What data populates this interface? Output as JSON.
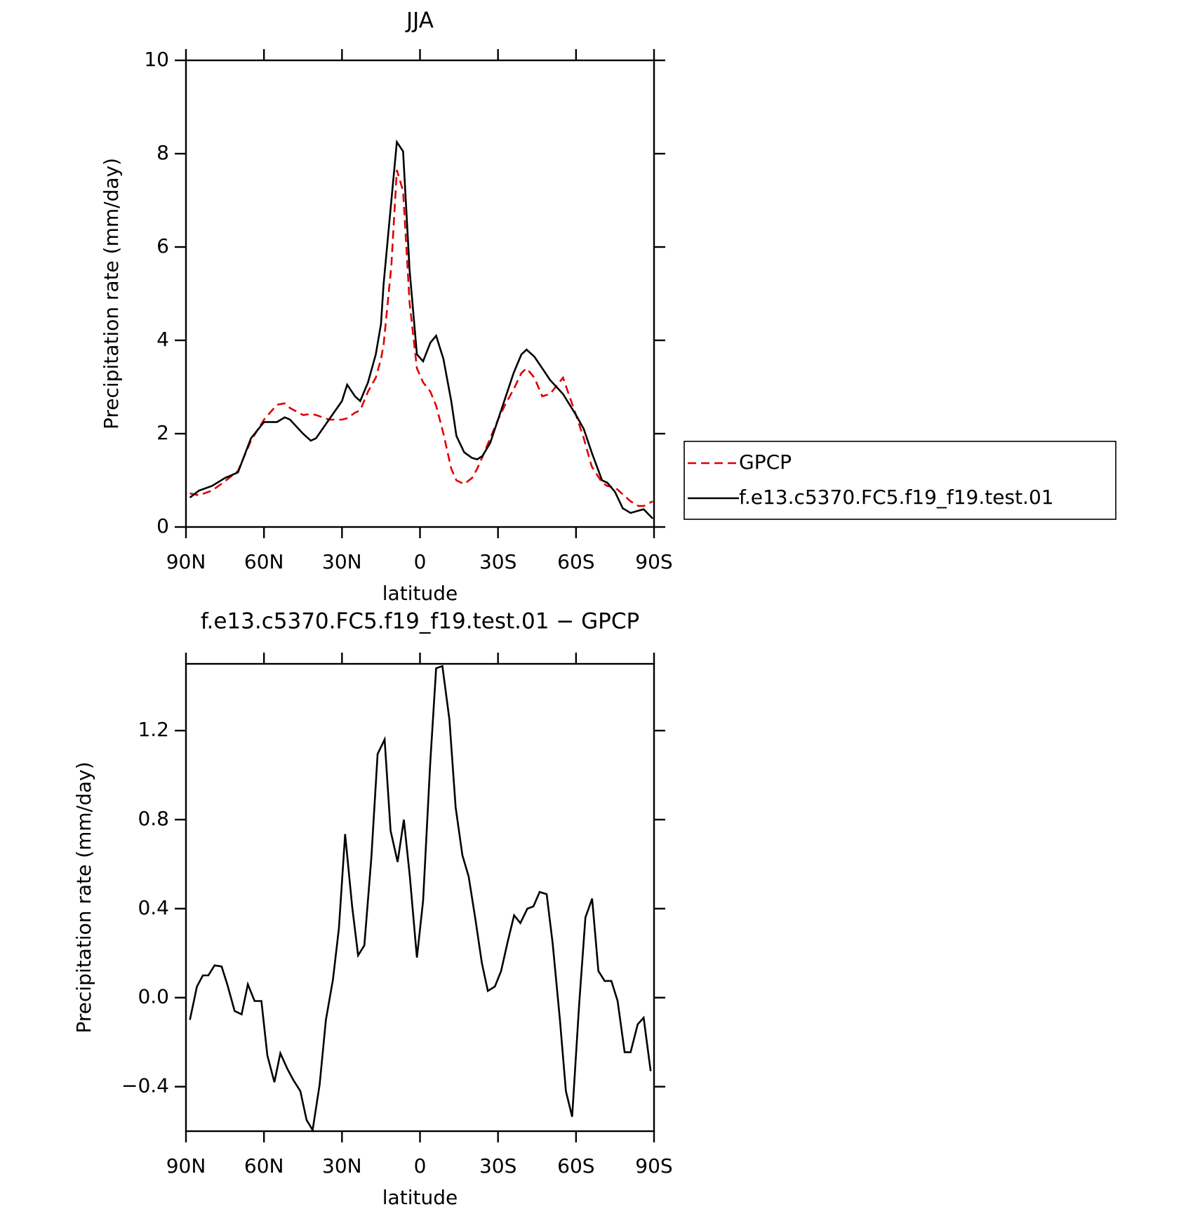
{
  "chart_data": [
    {
      "type": "line",
      "title": "JJA",
      "x_label": "latitude",
      "y_label": "Precipitation rate (mm/day)",
      "x": [
        88.5,
        85,
        80,
        75,
        70,
        65,
        60,
        55,
        52,
        50,
        45,
        42,
        40,
        35,
        30,
        28,
        25,
        23,
        20,
        17,
        15,
        14,
        11,
        8.9,
        6.5,
        4,
        1.2,
        -1.2,
        -4,
        -6.2,
        -9,
        -12,
        -14,
        -17,
        -20,
        -22,
        -24,
        -27,
        -30,
        -33,
        -36,
        -39,
        -41,
        -44,
        -47,
        -50,
        -55,
        -60,
        -63,
        -66,
        -70,
        -72,
        -75,
        -78,
        -81,
        -84,
        -86,
        -89.5
      ],
      "series": [
        {
          "name": "GPCP",
          "color": "#e00000",
          "dashed": true,
          "values": [
            0.72,
            0.68,
            0.78,
            0.98,
            1.2,
            1.85,
            2.3,
            2.62,
            2.65,
            2.55,
            2.4,
            2.42,
            2.4,
            2.3,
            2.3,
            2.33,
            2.45,
            2.5,
            2.9,
            3.2,
            3.6,
            3.9,
            5.6,
            7.65,
            7.2,
            4.8,
            3.4,
            3.1,
            2.9,
            2.6,
            2.0,
            1.25,
            1.0,
            0.92,
            1.05,
            1.25,
            1.5,
            1.9,
            2.3,
            2.65,
            2.95,
            3.3,
            3.4,
            3.2,
            2.8,
            2.85,
            3.2,
            2.4,
            1.9,
            1.3,
            0.95,
            0.88,
            0.85,
            0.7,
            0.55,
            0.45,
            0.45,
            0.55
          ]
        },
        {
          "name": "f.e13.c5370.FC5.f19_f19.test.01",
          "color": "#000000",
          "dashed": false,
          "values": [
            0.63,
            0.78,
            0.88,
            1.05,
            1.17,
            1.9,
            2.25,
            2.25,
            2.35,
            2.3,
            2.0,
            1.85,
            1.9,
            2.3,
            2.7,
            3.05,
            2.8,
            2.7,
            3.1,
            3.7,
            4.35,
            5.2,
            7.0,
            8.25,
            8.05,
            5.5,
            3.7,
            3.55,
            3.95,
            4.1,
            3.6,
            2.7,
            1.95,
            1.6,
            1.48,
            1.45,
            1.52,
            1.8,
            2.3,
            2.8,
            3.3,
            3.7,
            3.8,
            3.65,
            3.4,
            3.15,
            2.85,
            2.4,
            2.1,
            1.6,
            1.0,
            0.95,
            0.75,
            0.4,
            0.3,
            0.35,
            0.38,
            0.18
          ]
        }
      ],
      "xlim": [
        90,
        -90
      ],
      "xticks": [
        {
          "value": 90,
          "label": "90N"
        },
        {
          "value": 60,
          "label": "60N"
        },
        {
          "value": 30,
          "label": "30N"
        },
        0,
        {
          "value": -30,
          "label": "30S"
        },
        {
          "value": -60,
          "label": "60S"
        },
        {
          "value": -90,
          "label": "90S"
        }
      ],
      "ylim": [
        0,
        10
      ],
      "yticks": [
        0,
        2,
        4,
        6,
        8,
        10
      ],
      "legend": "right"
    },
    {
      "type": "line",
      "title": "f.e13.c5370.FC5.f19_f19.test.01 − GPCP",
      "x_label": "latitude",
      "y_label": "Precipitation rate (mm/day)",
      "x": [
        88.5,
        85.8,
        83.5,
        81.4,
        79,
        76.3,
        74,
        71.3,
        68.6,
        66.2,
        63.6,
        61,
        58.7,
        56,
        53.7,
        51,
        48.7,
        46,
        43.6,
        41.3,
        38.6,
        36.2,
        33.5,
        31.2,
        28.8,
        26.1,
        23.8,
        21.4,
        18.7,
        16.3,
        13.6,
        11.3,
        8.6,
        6.2,
        3.9,
        1.2,
        -1.2,
        -3.9,
        -6.2,
        -8.6,
        -11.3,
        -13.7,
        -16.3,
        -18.7,
        -21.4,
        -23.8,
        -26.1,
        -28.8,
        -31.2,
        -33.6,
        -36.2,
        -38.6,
        -41.3,
        -43.6,
        -46,
        -48.7,
        -51,
        -53.8,
        -56.1,
        -58.5,
        -61.2,
        -63.6,
        -66.2,
        -68.6,
        -71,
        -73.6,
        -76,
        -78.7,
        -81,
        -83.7,
        -86,
        -88.7
      ],
      "series": [
        {
          "color": "#000000",
          "dashed": false,
          "values": [
            -0.1,
            0.05,
            0.1,
            0.1,
            0.145,
            0.14,
            0.055,
            -0.06,
            -0.075,
            0.06,
            -0.015,
            -0.015,
            -0.26,
            -0.38,
            -0.25,
            -0.32,
            -0.37,
            -0.42,
            -0.55,
            -0.595,
            -0.39,
            -0.1,
            0.08,
            0.31,
            0.735,
            0.41,
            0.19,
            0.235,
            0.63,
            1.095,
            1.16,
            0.75,
            0.61,
            0.8,
            0.545,
            0.18,
            0.435,
            1.05,
            1.48,
            1.49,
            1.25,
            0.855,
            0.64,
            0.545,
            0.345,
            0.155,
            0.03,
            0.05,
            0.12,
            0.245,
            0.37,
            0.335,
            0.4,
            0.41,
            0.475,
            0.465,
            0.245,
            -0.1,
            -0.42,
            -0.535,
            -0.03,
            0.36,
            0.445,
            0.12,
            0.075,
            0.075,
            -0.015,
            -0.245,
            -0.245,
            -0.12,
            -0.09,
            -0.33
          ]
        }
      ],
      "xlim": [
        90,
        -90
      ],
      "xticks": [
        {
          "value": 90,
          "label": "90N"
        },
        {
          "value": 60,
          "label": "60N"
        },
        {
          "value": 30,
          "label": "30N"
        },
        0,
        {
          "value": -30,
          "label": "30S"
        },
        {
          "value": -60,
          "label": "60S"
        },
        {
          "value": -90,
          "label": "90S"
        }
      ],
      "ylim": [
        -0.6,
        1.5
      ],
      "yticks": [
        {
          "value": -0.4,
          "label": "−0.4"
        },
        {
          "value": 0,
          "label": "0.0"
        },
        0.4,
        0.8,
        1.2
      ]
    }
  ]
}
